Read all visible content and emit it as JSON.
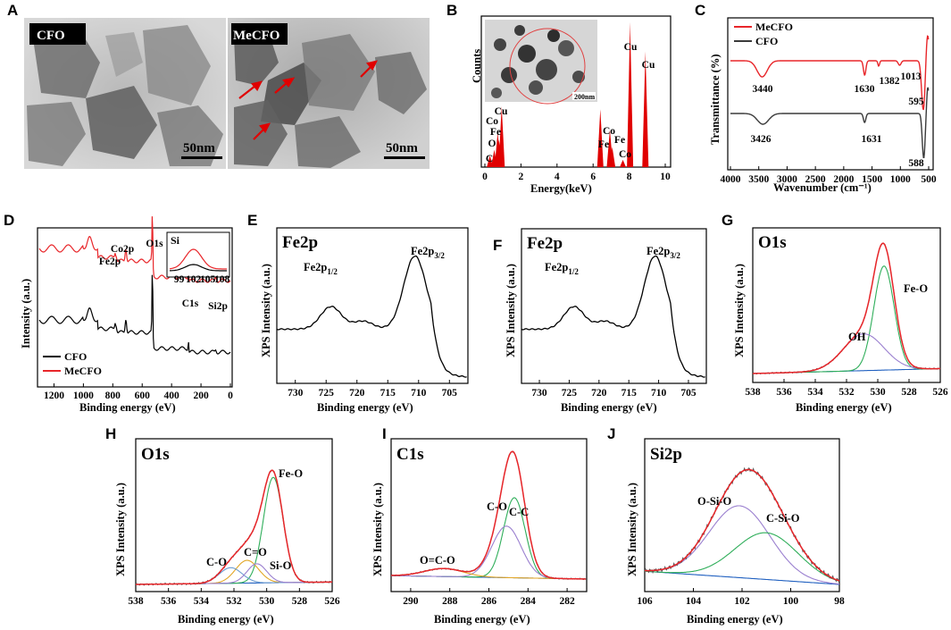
{
  "figure": {
    "panels": [
      {
        "id": "A",
        "label": "A"
      },
      {
        "id": "B",
        "label": "B"
      },
      {
        "id": "C",
        "label": "C"
      },
      {
        "id": "D",
        "label": "D"
      },
      {
        "id": "E",
        "label": "E"
      },
      {
        "id": "F",
        "label": "F"
      },
      {
        "id": "G",
        "label": "G"
      },
      {
        "id": "H",
        "label": "H"
      },
      {
        "id": "I",
        "label": "I"
      },
      {
        "id": "J",
        "label": "J"
      }
    ]
  },
  "tem": {
    "left_label": "CFO",
    "right_label": "MeCFO",
    "left_scale": "50nm",
    "right_scale": "50nm"
  },
  "chart_data": [
    {
      "panel": "B",
      "type": "bar",
      "title": "",
      "xlabel": "Energy(keV)",
      "ylabel": "Counts",
      "xlim": [
        0,
        10
      ],
      "xticks": [
        "0",
        "2",
        "4",
        "6",
        "8",
        "10"
      ],
      "peaks": [
        {
          "label": "C",
          "x": 0.28,
          "value": 0.08
        },
        {
          "label": "O",
          "x": 0.52,
          "value": 0.12
        },
        {
          "label": "Co",
          "x": 0.78,
          "value": 0.19
        },
        {
          "label": "Fe",
          "x": 0.71,
          "value": 0.24
        },
        {
          "label": "Cu",
          "x": 0.93,
          "value": 0.42
        },
        {
          "label": "Fe",
          "x": 6.4,
          "value": 0.4
        },
        {
          "label": "Co",
          "x": 6.93,
          "value": 0.26
        },
        {
          "label": "Fe",
          "x": 7.06,
          "value": 0.14
        },
        {
          "label": "Co",
          "x": 7.65,
          "value": 0.05
        },
        {
          "label": "Cu",
          "x": 8.05,
          "value": 1.0
        },
        {
          "label": "Cu",
          "x": 8.9,
          "value": 0.8
        }
      ],
      "inset_scale": "200nm"
    },
    {
      "panel": "C",
      "type": "line",
      "xlabel": "Wavenumber (cm⁻¹)",
      "ylabel": "Transmittance (%)",
      "xlim": [
        4000,
        500
      ],
      "xticks": [
        "4000",
        "3500",
        "3000",
        "2500",
        "2000",
        "1500",
        "1000",
        "500"
      ],
      "legend": [
        "MeCFO",
        "CFO"
      ],
      "series": [
        {
          "name": "MeCFO",
          "color": "#e8262a",
          "peaks": [
            3440,
            1630,
            1382,
            1013,
            595
          ]
        },
        {
          "name": "CFO",
          "color": "#3a3a3a",
          "peaks": [
            3426,
            1631,
            588
          ]
        }
      ],
      "annotations": [
        "3440",
        "1630",
        "1382",
        "1013",
        "595",
        "3426",
        "1631",
        "588"
      ]
    },
    {
      "panel": "D",
      "type": "line",
      "xlabel": "Binding energy (eV)",
      "ylabel": "Intensity (a.u.)",
      "xlim": [
        1300,
        0
      ],
      "xticks": [
        "1200",
        "1000",
        "800",
        "600",
        "400",
        "200",
        "0"
      ],
      "legend": [
        "CFO",
        "MeCFO"
      ],
      "series": [
        {
          "name": "CFO",
          "color": "#000000"
        },
        {
          "name": "MeCFO",
          "color": "#e8262a"
        }
      ],
      "annotations": [
        "Co2p",
        "Fe2p",
        "O1s",
        "C1s",
        "Si2p"
      ],
      "inset": {
        "label": "Si",
        "xticks": [
          "99",
          "102",
          "105",
          "108"
        ]
      }
    },
    {
      "panel": "E",
      "type": "line",
      "title": "Fe2p",
      "xlabel": "Binding energy (eV)",
      "ylabel": "XPS Intensity (a.u.)",
      "xlim": [
        733,
        702
      ],
      "xticks": [
        "730",
        "725",
        "720",
        "715",
        "710",
        "705"
      ],
      "peaks": [
        {
          "name": "Fe2p1/2",
          "x": 724.2
        },
        {
          "name": "Fe2p3/2",
          "x": 710.6
        }
      ]
    },
    {
      "panel": "F",
      "type": "line",
      "title": "Fe2p",
      "xlabel": "Binding energy (eV)",
      "ylabel": "XPS Intensity (a.u.)",
      "xlim": [
        733,
        702
      ],
      "xticks": [
        "730",
        "725",
        "720",
        "715",
        "710",
        "705"
      ],
      "peaks": [
        {
          "name": "Fe2p1/2",
          "x": 724.2
        },
        {
          "name": "Fe2p3/2",
          "x": 710.6
        }
      ]
    },
    {
      "panel": "G",
      "type": "line",
      "title": "O1s",
      "xlabel": "Binding energy (eV)",
      "ylabel": "XPS Intensity (a.u.)",
      "xlim": [
        538,
        526
      ],
      "xticks": [
        "538",
        "536",
        "534",
        "532",
        "530",
        "528",
        "526"
      ],
      "components": [
        {
          "name": "Fe-O",
          "center": 529.6,
          "height": 0.85,
          "width": 0.65,
          "color": "#2fae5a"
        },
        {
          "name": "OH",
          "center": 530.9,
          "height": 0.3,
          "width": 1.3,
          "color": "#9a7fcf"
        }
      ]
    },
    {
      "panel": "H",
      "type": "line",
      "title": "O1s",
      "xlabel": "Binding energy (eV)",
      "ylabel": "XPS Intensity (a.u.)",
      "xlim": [
        538,
        526
      ],
      "xticks": [
        "538",
        "536",
        "534",
        "532",
        "530",
        "528",
        "526"
      ],
      "components": [
        {
          "name": "Fe-O",
          "center": 529.6,
          "height": 0.88,
          "width": 0.6,
          "color": "#2fae5a"
        },
        {
          "name": "C=O",
          "center": 531.2,
          "height": 0.19,
          "width": 0.7,
          "color": "#e2a626"
        },
        {
          "name": "C-O",
          "center": 532.2,
          "height": 0.13,
          "width": 0.7,
          "color": "#6b9bd1"
        },
        {
          "name": "Si-O",
          "center": 530.6,
          "height": 0.16,
          "width": 0.6,
          "color": "#9a7fcf"
        }
      ]
    },
    {
      "panel": "I",
      "type": "line",
      "title": "C1s",
      "xlabel": "Binding energy (eV)",
      "ylabel": "XPS Intensity (a.u.)",
      "xlim": [
        291,
        281
      ],
      "xticks": [
        "290",
        "288",
        "286",
        "284",
        "282"
      ],
      "components": [
        {
          "name": "C-C",
          "center": 284.7,
          "height": 0.7,
          "width": 0.55,
          "color": "#2fae5a"
        },
        {
          "name": "C-O",
          "center": 285.1,
          "height": 0.45,
          "width": 0.75,
          "color": "#9a7fcf"
        },
        {
          "name": "O=C-O",
          "center": 288.3,
          "height": 0.07,
          "width": 1.0,
          "color": "#e2a626"
        }
      ]
    },
    {
      "panel": "J",
      "type": "line",
      "title": "Si2p",
      "xlabel": "Binding energy (eV)",
      "ylabel": "XPS Intensity (a.u.)",
      "xlim": [
        106,
        98
      ],
      "xticks": [
        "106",
        "104",
        "102",
        "100",
        "98"
      ],
      "components": [
        {
          "name": "O-Si-O",
          "center": 102.1,
          "height": 0.6,
          "width": 1.25,
          "color": "#9a7fcf"
        },
        {
          "name": "C-Si-O",
          "center": 101.0,
          "height": 0.39,
          "width": 1.3,
          "color": "#2fae5a"
        }
      ]
    }
  ]
}
